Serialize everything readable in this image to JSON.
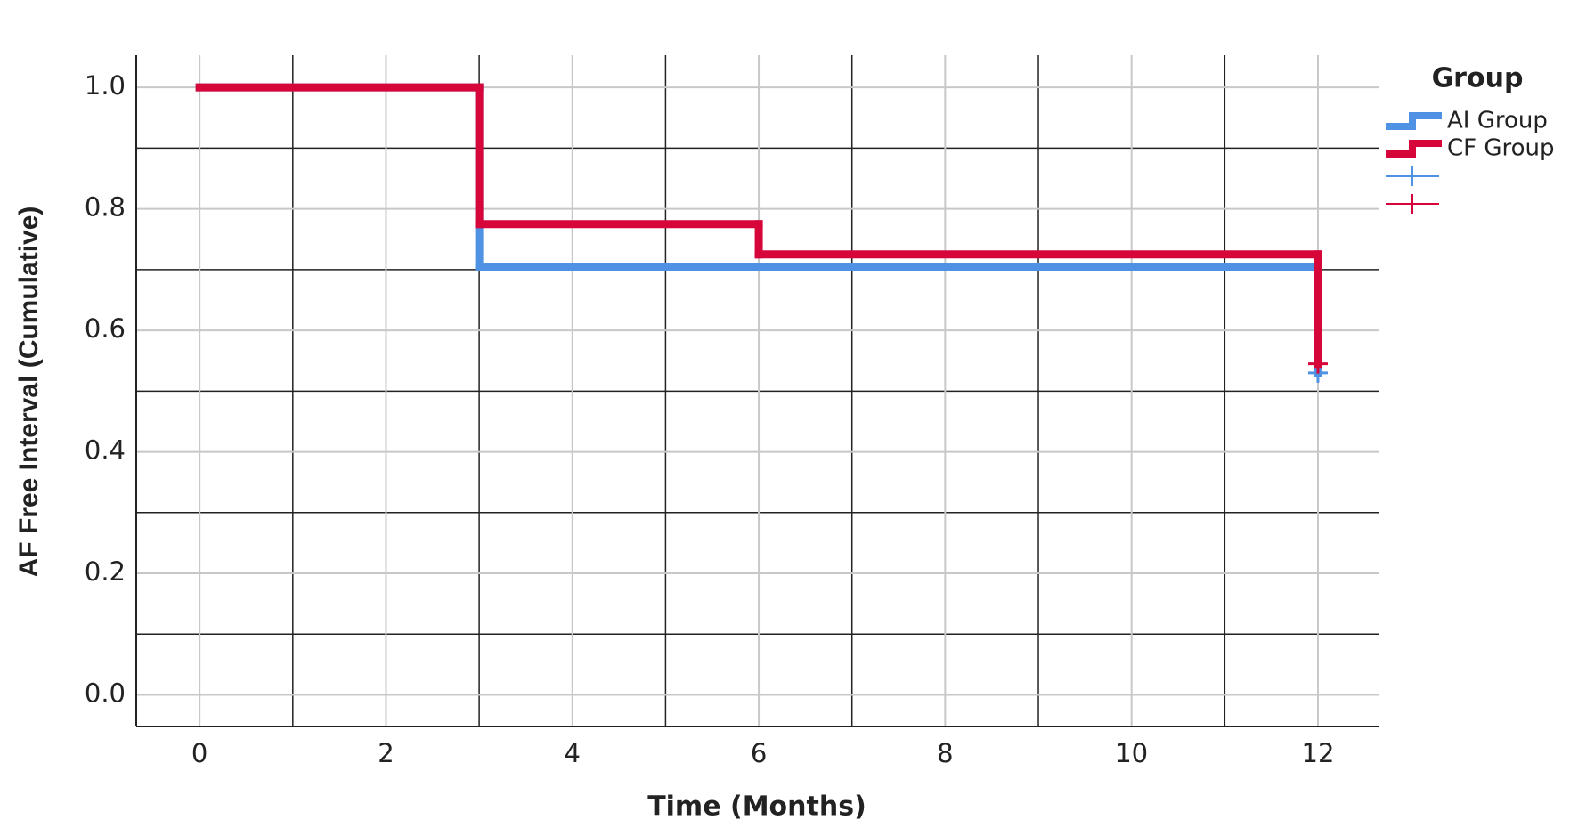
{
  "chart_data": {
    "type": "step",
    "x_label": "Time (Months)",
    "y_label": "AF Free Interval (Cumulative)",
    "legend_title": "Group",
    "legend": "top-right",
    "xlim": [
      -0.68,
      12.65
    ],
    "xticks": [
      0,
      2,
      4,
      6,
      8,
      10,
      12
    ],
    "minor_xticks": [
      1,
      3,
      5,
      7,
      9,
      11
    ],
    "ylim": [
      -0.052,
      1.053
    ],
    "yticks": [
      {
        "value": 0,
        "label": "0.0"
      },
      0.2,
      0.4,
      0.6,
      0.8,
      {
        "value": 1,
        "label": "1.0"
      }
    ],
    "minor_yticks": [
      0.1,
      0.3,
      0.5,
      0.7,
      0.9
    ],
    "grid": true,
    "series": [
      {
        "name": "AI Group",
        "color": "#4f92e3",
        "x": [
          0,
          3,
          12
        ],
        "values": [
          1.0,
          0.705,
          0.53
        ],
        "censored": {
          "x": [
            12
          ],
          "values": [
            0.53
          ]
        }
      },
      {
        "name": "CF Group",
        "color": "#d6063a",
        "x": [
          0,
          3,
          6,
          12
        ],
        "values": [
          1.0,
          0.775,
          0.725,
          0.545
        ],
        "censored": {
          "x": [
            12
          ],
          "values": [
            0.545
          ]
        }
      }
    ]
  }
}
